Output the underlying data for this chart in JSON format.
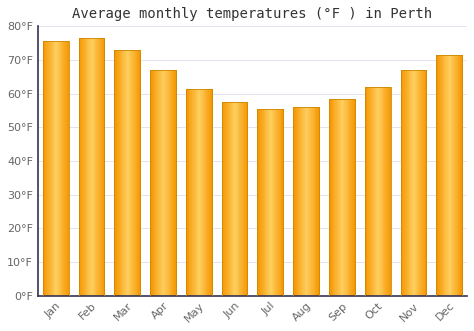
{
  "title": "Average monthly temperatures (°F ) in Perth",
  "months": [
    "Jan",
    "Feb",
    "Mar",
    "Apr",
    "May",
    "Jun",
    "Jul",
    "Aug",
    "Sep",
    "Oct",
    "Nov",
    "Dec"
  ],
  "values": [
    75.5,
    76.5,
    73.0,
    67.0,
    61.5,
    57.5,
    55.5,
    56.0,
    58.5,
    62.0,
    67.0,
    71.5
  ],
  "bar_color": "#FFA500",
  "bar_edge_color": "#CC8800",
  "background_color": "#FFFFFF",
  "plot_bg_color": "#FFFFFF",
  "ylim": [
    0,
    80
  ],
  "ytick_step": 10,
  "title_fontsize": 10,
  "tick_fontsize": 8,
  "grid_color": "#DDDDEE",
  "spine_color": "#333355"
}
